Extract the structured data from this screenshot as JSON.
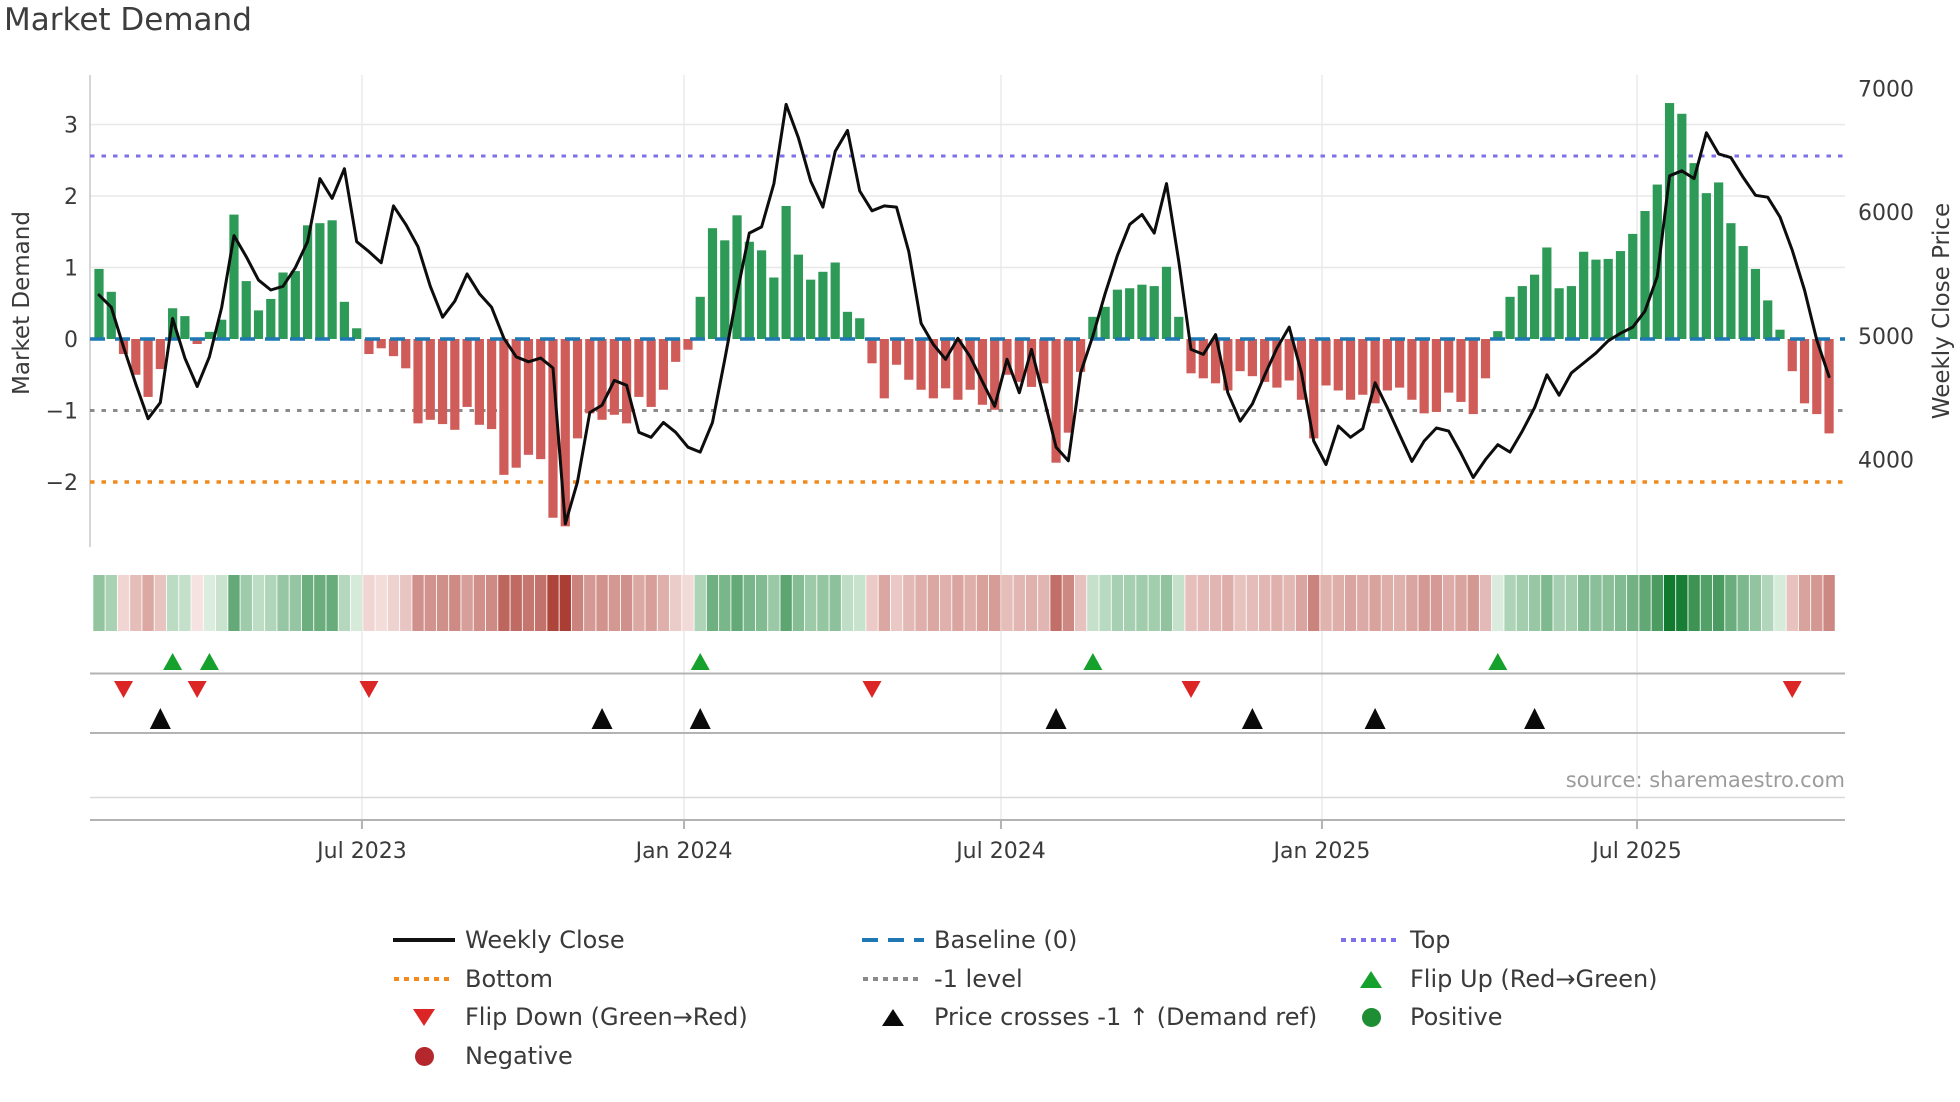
{
  "title": "Market Demand",
  "source": "source: sharemaestro.com",
  "axes": {
    "left_label": "Market Demand",
    "right_label": "Weekly Close Price",
    "left_tick_labels": [
      "3",
      "2",
      "1",
      "0",
      "−1",
      "−2"
    ],
    "left_tick_values": [
      3,
      2,
      1,
      0,
      -1,
      -2
    ],
    "right_tick_labels": [
      "7000",
      "6000",
      "5000",
      "4000"
    ],
    "right_tick_values": [
      7000,
      6000,
      5000,
      4000
    ]
  },
  "chart_data": {
    "type": "bar+line",
    "title": "Market Demand",
    "xlabel": "",
    "ylabel_left": "Market Demand",
    "ylabel_right": "Weekly Close Price",
    "ylim_left": [
      -2.9,
      3.5
    ],
    "ylim_right": [
      3400,
      7000
    ],
    "grid": true,
    "legend_position": "bottom",
    "x_ticks": [
      {
        "label": "Jul 2023",
        "week": 21.43
      },
      {
        "label": "Jan 2024",
        "week": 47.68
      },
      {
        "label": "Jul 2024",
        "week": 73.51
      },
      {
        "label": "Jan 2025",
        "week": 99.67
      },
      {
        "label": "Jul 2025",
        "week": 125.35
      }
    ],
    "levels": {
      "top": 2.56,
      "baseline": 0,
      "minus1": -1,
      "bottom": -2
    },
    "series": [
      {
        "name": "Market Demand",
        "type": "bar",
        "axis": "left",
        "values": [
          0.98,
          0.66,
          -0.21,
          -0.5,
          -0.81,
          -0.42,
          0.43,
          0.32,
          -0.07,
          0.1,
          0.27,
          1.74,
          0.81,
          0.4,
          0.56,
          0.93,
          0.95,
          1.59,
          1.62,
          1.66,
          0.52,
          0.15,
          -0.21,
          -0.13,
          -0.24,
          -0.41,
          -1.18,
          -1.13,
          -1.19,
          -1.27,
          -0.95,
          -1.2,
          -1.26,
          -1.9,
          -1.8,
          -1.62,
          -1.68,
          -2.5,
          -2.62,
          -1.39,
          -1.04,
          -1.13,
          -1.06,
          -1.18,
          -0.81,
          -0.95,
          -0.71,
          -0.32,
          -0.15,
          0.59,
          1.55,
          1.38,
          1.73,
          1.36,
          1.24,
          0.86,
          1.86,
          1.18,
          0.83,
          0.94,
          1.07,
          0.38,
          0.29,
          -0.34,
          -0.83,
          -0.36,
          -0.57,
          -0.71,
          -0.83,
          -0.69,
          -0.85,
          -0.71,
          -0.92,
          -0.99,
          -0.5,
          -0.6,
          -0.67,
          -0.62,
          -1.73,
          -1.31,
          -0.46,
          0.31,
          0.45,
          0.69,
          0.71,
          0.76,
          0.74,
          1.01,
          0.31,
          -0.48,
          -0.55,
          -0.62,
          -0.72,
          -0.45,
          -0.52,
          -0.6,
          -0.68,
          -0.58,
          -0.85,
          -1.39,
          -0.65,
          -0.72,
          -0.85,
          -0.78,
          -0.9,
          -0.72,
          -0.68,
          -0.85,
          -1.04,
          -1.02,
          -0.75,
          -0.88,
          -1.05,
          -0.55,
          0.11,
          0.59,
          0.74,
          0.9,
          1.28,
          0.71,
          0.74,
          1.22,
          1.11,
          1.12,
          1.23,
          1.47,
          1.79,
          2.16,
          3.3,
          3.15,
          2.46,
          2.04,
          2.19,
          1.62,
          1.3,
          0.98,
          0.54,
          0.13,
          -0.45,
          -0.9,
          -1.05,
          -1.32
        ]
      },
      {
        "name": "Weekly Close",
        "type": "line",
        "axis": "right",
        "values": [
          5330,
          5230,
          4910,
          4610,
          4330,
          4460,
          5140,
          4820,
          4590,
          4830,
          5230,
          5810,
          5640,
          5450,
          5370,
          5400,
          5550,
          5760,
          6270,
          6110,
          6350,
          5760,
          5680,
          5590,
          6050,
          5900,
          5720,
          5400,
          5150,
          5280,
          5500,
          5340,
          5230,
          4980,
          4830,
          4790,
          4820,
          4740,
          3480,
          3820,
          4380,
          4440,
          4640,
          4600,
          4220,
          4180,
          4300,
          4220,
          4100,
          4060,
          4300,
          4810,
          5340,
          5830,
          5880,
          6230,
          6870,
          6600,
          6250,
          6040,
          6490,
          6660,
          6170,
          6010,
          6050,
          6040,
          5680,
          5100,
          4930,
          4810,
          4980,
          4830,
          4630,
          4430,
          4810,
          4540,
          4890,
          4500,
          4100,
          3990,
          4700,
          5000,
          5340,
          5650,
          5900,
          5980,
          5830,
          6230,
          5600,
          4890,
          4850,
          5010,
          4540,
          4310,
          4450,
          4680,
          4900,
          5070,
          4700,
          4150,
          3960,
          4270,
          4180,
          4250,
          4620,
          4420,
          4200,
          3985,
          4150,
          4255,
          4230,
          4050,
          3855,
          4000,
          4120,
          4060,
          4230,
          4420,
          4685,
          4520,
          4700,
          4780,
          4860,
          4960,
          5020,
          5070,
          5200,
          5480,
          6293,
          6333,
          6270,
          6640,
          6470,
          6440,
          6280,
          6135,
          6120,
          5960,
          5690,
          5370,
          4965,
          4670
        ]
      }
    ],
    "heatmap": {
      "note": "strip of weekly demand values colored red-to-green by sign and intensity"
    },
    "markers": {
      "flip_up_weeks": [
        6,
        9,
        49,
        81,
        114
      ],
      "flip_down_weeks": [
        2,
        8,
        22,
        63,
        89,
        138
      ],
      "price_cross_weeks": [
        5,
        41,
        49,
        78,
        94,
        104,
        117
      ]
    },
    "colors": {
      "bar_positive": "#2e9a57",
      "bar_negative": "#cf5c59",
      "line": "#0d0d0d",
      "baseline": "#1f77b4",
      "top_level": "#7e70e8",
      "bottom_level": "#f08a1d",
      "minus1_level": "#8a8a8a",
      "flip_up": "#16a02c",
      "flip_down": "#dc2626",
      "price_cross": "#0a0a0a",
      "positive_dot": "#1d8e34",
      "negative_dot": "#b3272d"
    }
  },
  "legend": {
    "items": [
      {
        "label": "Weekly Close",
        "type": "weekly-close"
      },
      {
        "label": "Baseline (0)",
        "type": "baseline"
      },
      {
        "label": "Top",
        "type": "top"
      },
      {
        "label": "Bottom",
        "type": "bottom"
      },
      {
        "label": "-1 level",
        "type": "minus1"
      },
      {
        "label": "Flip Up (Red→Green)",
        "type": "flip-up"
      },
      {
        "label": "Flip Down (Green→Red)",
        "type": "flip-down"
      },
      {
        "label": "Price crosses -1 ↑ (Demand ref)",
        "type": "price-cross"
      },
      {
        "label": "Positive",
        "type": "positive"
      },
      {
        "label": "Negative",
        "type": "negative"
      }
    ]
  }
}
